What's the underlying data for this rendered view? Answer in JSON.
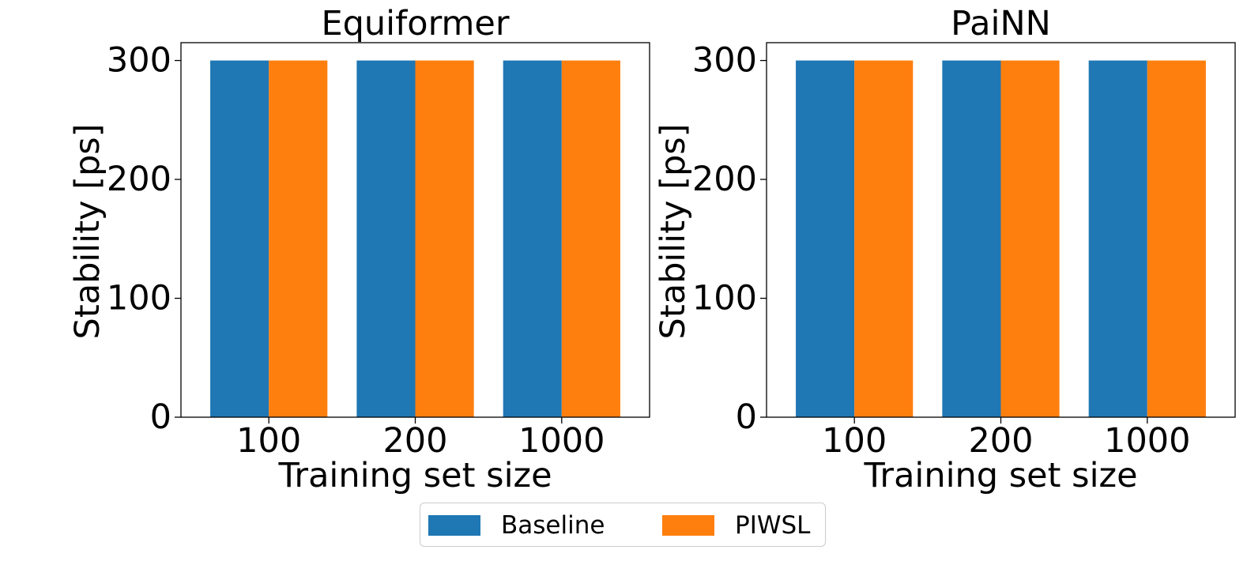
{
  "chart_data": [
    {
      "type": "bar",
      "title": "Equiformer",
      "xlabel": "Training set size",
      "ylabel": "Stability [ps]",
      "categories": [
        "100",
        "200",
        "1000"
      ],
      "ylim": [
        0,
        315
      ],
      "yticks": [
        0,
        100,
        200,
        300
      ],
      "grid": false,
      "series": [
        {
          "name": "Baseline",
          "color": "#1f77b4",
          "values": [
            300,
            300,
            300
          ]
        },
        {
          "name": "PIWSL",
          "color": "#ff7f0e",
          "values": [
            300,
            300,
            300
          ]
        }
      ]
    },
    {
      "type": "bar",
      "title": "PaiNN",
      "xlabel": "Training set size",
      "ylabel": "Stability [ps]",
      "categories": [
        "100",
        "200",
        "1000"
      ],
      "ylim": [
        0,
        315
      ],
      "yticks": [
        0,
        100,
        200,
        300
      ],
      "grid": false,
      "series": [
        {
          "name": "Baseline",
          "color": "#1f77b4",
          "values": [
            300,
            300,
            300
          ]
        },
        {
          "name": "PIWSL",
          "color": "#ff7f0e",
          "values": [
            300,
            300,
            300
          ]
        }
      ]
    }
  ],
  "legend": {
    "placement": "bottom-center",
    "items": [
      {
        "label": "Baseline",
        "color": "#1f77b4"
      },
      {
        "label": "PIWSL",
        "color": "#ff7f0e"
      }
    ]
  }
}
